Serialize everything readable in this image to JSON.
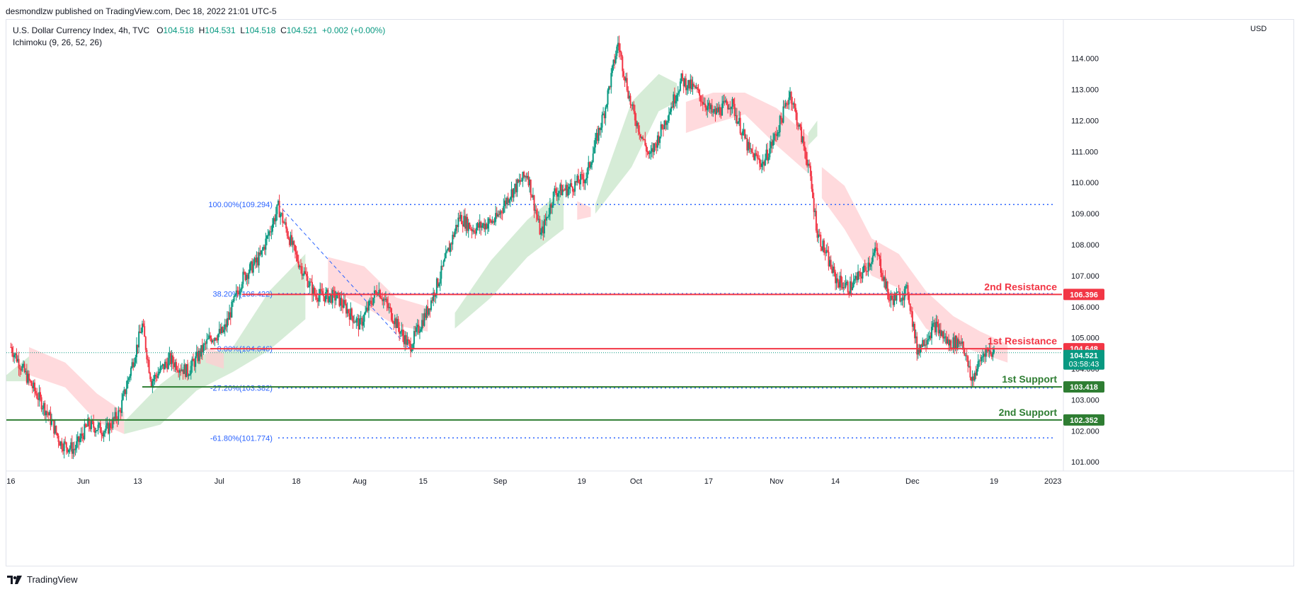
{
  "publisher": "desmondlzw published on TradingView.com, Dec 18, 2022 21:01 UTC-5",
  "legend": {
    "symbol": "U.S. Dollar Currency Index, 4h, TVC",
    "o_label": "O",
    "o": "104.518",
    "h_label": "H",
    "h": "104.531",
    "l_label": "L",
    "l": "104.518",
    "c_label": "C",
    "c": "104.521",
    "change": "+0.002 (+0.00%)",
    "indicator": "Ichimoku (9, 26, 52, 26)"
  },
  "currency": "USD",
  "footer": {
    "brand": "TradingView"
  },
  "colors": {
    "up": "#089981",
    "down": "#f23645",
    "resistance": "#f23645",
    "support": "#2e7d32",
    "fib": "#2962ff",
    "cloud_bull": "#c8e6c9",
    "cloud_bear": "#ffcdd2"
  },
  "chart_data": {
    "type": "candlestick",
    "title": "U.S. Dollar Currency Index, 4h, TVC",
    "ylim": [
      100.8,
      115.2
    ],
    "y_ticks": [
      "101.000",
      "102.000",
      "103.000",
      "104.000",
      "105.000",
      "106.000",
      "107.000",
      "108.000",
      "109.000",
      "110.000",
      "111.000",
      "112.000",
      "113.000",
      "114.000"
    ],
    "x_ticks": [
      {
        "label": "16",
        "x": "2022-05-16"
      },
      {
        "label": "Jun",
        "x": "2022-06-01"
      },
      {
        "label": "13",
        "x": "2022-06-13"
      },
      {
        "label": "Jul",
        "x": "2022-07-01"
      },
      {
        "label": "18",
        "x": "2022-07-18"
      },
      {
        "label": "Aug",
        "x": "2022-08-01"
      },
      {
        "label": "15",
        "x": "2022-08-15"
      },
      {
        "label": "Sep",
        "x": "2022-09-01"
      },
      {
        "label": "19",
        "x": "2022-09-19"
      },
      {
        "label": "Oct",
        "x": "2022-10-01"
      },
      {
        "label": "17",
        "x": "2022-10-17"
      },
      {
        "label": "Nov",
        "x": "2022-11-01"
      },
      {
        "label": "14",
        "x": "2022-11-14"
      },
      {
        "label": "Dec",
        "x": "2022-12-01"
      },
      {
        "label": "19",
        "x": "2022-12-19"
      },
      {
        "label": "2023",
        "x": "2023-01-01"
      }
    ],
    "x_range": [
      "2022-05-15",
      "2023-01-03"
    ],
    "price_path": [
      [
        "2022-05-16",
        104.7
      ],
      [
        "2022-05-20",
        103.6
      ],
      [
        "2022-05-24",
        102.6
      ],
      [
        "2022-05-27",
        101.6
      ],
      [
        "2022-05-30",
        101.4
      ],
      [
        "2022-06-02",
        102.2
      ],
      [
        "2022-06-06",
        102.0
      ],
      [
        "2022-06-09",
        102.6
      ],
      [
        "2022-06-14",
        105.4
      ],
      [
        "2022-06-16",
        103.6
      ],
      [
        "2022-06-20",
        104.3
      ],
      [
        "2022-06-24",
        103.9
      ],
      [
        "2022-06-29",
        105.0
      ],
      [
        "2022-07-02",
        105.2
      ],
      [
        "2022-07-06",
        106.9
      ],
      [
        "2022-07-10",
        107.6
      ],
      [
        "2022-07-14",
        109.2
      ],
      [
        "2022-07-18",
        107.6
      ],
      [
        "2022-07-22",
        106.4
      ],
      [
        "2022-07-27",
        106.3
      ],
      [
        "2022-08-01",
        105.4
      ],
      [
        "2022-08-05",
        106.6
      ],
      [
        "2022-08-10",
        105.2
      ],
      [
        "2022-08-12",
        104.7
      ],
      [
        "2022-08-16",
        105.9
      ],
      [
        "2022-08-19",
        107.1
      ],
      [
        "2022-08-23",
        108.9
      ],
      [
        "2022-08-26",
        108.5
      ],
      [
        "2022-08-31",
        108.8
      ],
      [
        "2022-09-03",
        109.6
      ],
      [
        "2022-09-07",
        110.3
      ],
      [
        "2022-09-10",
        108.3
      ],
      [
        "2022-09-13",
        109.7
      ],
      [
        "2022-09-16",
        109.8
      ],
      [
        "2022-09-20",
        110.2
      ],
      [
        "2022-09-24",
        112.3
      ],
      [
        "2022-09-27",
        114.5
      ],
      [
        "2022-09-30",
        112.4
      ],
      [
        "2022-10-04",
        110.8
      ],
      [
        "2022-10-08",
        112.2
      ],
      [
        "2022-10-11",
        113.3
      ],
      [
        "2022-10-14",
        113.0
      ],
      [
        "2022-10-18",
        112.2
      ],
      [
        "2022-10-22",
        112.6
      ],
      [
        "2022-10-26",
        111.0
      ],
      [
        "2022-10-29",
        110.6
      ],
      [
        "2022-11-01",
        111.6
      ],
      [
        "2022-11-04",
        112.9
      ],
      [
        "2022-11-08",
        110.6
      ],
      [
        "2022-11-10",
        108.4
      ],
      [
        "2022-11-14",
        106.9
      ],
      [
        "2022-11-17",
        106.6
      ],
      [
        "2022-11-20",
        107.1
      ],
      [
        "2022-11-23",
        107.8
      ],
      [
        "2022-11-26",
        106.2
      ],
      [
        "2022-11-30",
        106.5
      ],
      [
        "2022-12-02",
        104.6
      ],
      [
        "2022-12-06",
        105.4
      ],
      [
        "2022-12-09",
        104.8
      ],
      [
        "2022-12-12",
        104.9
      ],
      [
        "2022-12-14",
        103.6
      ],
      [
        "2022-12-17",
        104.6
      ],
      [
        "2022-12-19",
        104.52
      ]
    ],
    "cloud_segments": [
      {
        "type": "bear",
        "points": [
          [
            "2022-05-20",
            104.7,
            103.8
          ],
          [
            "2022-05-28",
            104.2,
            103.4
          ],
          [
            "2022-06-04",
            103.2,
            102.3
          ],
          [
            "2022-06-10",
            102.6,
            101.9
          ]
        ]
      },
      {
        "type": "bull",
        "points": [
          [
            "2022-05-15",
            103.8,
            103.6
          ],
          [
            "2022-05-20",
            104.4,
            103.6
          ]
        ]
      },
      {
        "type": "bull",
        "points": [
          [
            "2022-06-10",
            102.3,
            101.9
          ],
          [
            "2022-06-18",
            103.5,
            102.2
          ],
          [
            "2022-06-26",
            104.4,
            103.3
          ],
          [
            "2022-07-04",
            104.7,
            103.9
          ],
          [
            "2022-07-12",
            106.5,
            104.6
          ],
          [
            "2022-07-20",
            107.7,
            105.6
          ]
        ]
      },
      {
        "type": "bear",
        "points": [
          [
            "2022-06-28",
            104.7,
            104.2
          ],
          [
            "2022-07-02",
            104.5,
            104.0
          ]
        ]
      },
      {
        "type": "bear",
        "points": [
          [
            "2022-07-25",
            107.6,
            106.6
          ],
          [
            "2022-08-02",
            107.3,
            106.0
          ],
          [
            "2022-08-09",
            106.3,
            105.4
          ],
          [
            "2022-08-16",
            106.0,
            105.2
          ]
        ]
      },
      {
        "type": "bull",
        "points": [
          [
            "2022-08-22",
            105.8,
            105.3
          ],
          [
            "2022-08-30",
            107.5,
            106.3
          ],
          [
            "2022-09-07",
            108.8,
            107.6
          ],
          [
            "2022-09-15",
            109.8,
            108.5
          ]
        ]
      },
      {
        "type": "bear",
        "points": [
          [
            "2022-09-18",
            109.4,
            108.8
          ],
          [
            "2022-09-21",
            109.2,
            108.9
          ]
        ]
      },
      {
        "type": "bull",
        "points": [
          [
            "2022-09-22",
            109.3,
            109.0
          ],
          [
            "2022-09-30",
            112.6,
            110.5
          ],
          [
            "2022-10-06",
            113.5,
            112.3
          ],
          [
            "2022-10-10",
            113.2,
            112.6
          ]
        ]
      },
      {
        "type": "bear",
        "points": [
          [
            "2022-10-12",
            112.6,
            111.6
          ],
          [
            "2022-10-18",
            112.9,
            111.9
          ],
          [
            "2022-10-25",
            112.9,
            112.2
          ],
          [
            "2022-11-01",
            112.4,
            111.2
          ],
          [
            "2022-11-08",
            111.5,
            110.3
          ]
        ]
      },
      {
        "type": "bull",
        "points": [
          [
            "2022-11-08",
            111.6,
            111.2
          ],
          [
            "2022-11-10",
            112.0,
            111.5
          ]
        ]
      },
      {
        "type": "bear",
        "points": [
          [
            "2022-11-11",
            110.5,
            109.5
          ],
          [
            "2022-11-16",
            109.9,
            108.5
          ],
          [
            "2022-11-22",
            108.2,
            107.0
          ],
          [
            "2022-11-28",
            107.7,
            106.6
          ],
          [
            "2022-12-04",
            106.5,
            105.3
          ],
          [
            "2022-12-10",
            105.7,
            104.8
          ],
          [
            "2022-12-16",
            105.2,
            104.5
          ],
          [
            "2022-12-22",
            104.8,
            104.2
          ]
        ]
      }
    ],
    "fibonacci": {
      "levels": [
        {
          "label": "100.00%(109.294)",
          "value": 109.294
        },
        {
          "label": "38.20%(106.422)",
          "value": 106.422
        },
        {
          "label": "0.00%(104.646)",
          "value": 104.646
        },
        {
          "label": "-27.20%(103.382)",
          "value": 103.382
        },
        {
          "label": "-61.80%(101.774)",
          "value": 101.774
        }
      ],
      "start": "2022-07-14",
      "end": "2023-01-01",
      "diag_from": [
        "2022-07-14",
        109.294
      ],
      "diag_to": [
        "2022-08-12",
        104.646
      ]
    },
    "levels": [
      {
        "label": "2nd Resistance",
        "value": 106.396,
        "tag": "106.396",
        "kind": "resistance",
        "from": "2022-07-06"
      },
      {
        "label": "1st Resistance",
        "value": 104.648,
        "tag": "104.648",
        "kind": "resistance",
        "from": "2022-06-29"
      },
      {
        "label": "1st Support",
        "value": 103.418,
        "tag": "103.418",
        "kind": "support",
        "from": "2022-06-14"
      },
      {
        "label": "2nd Support",
        "value": 102.352,
        "tag": "102.352",
        "kind": "support",
        "from": "2022-05-15"
      }
    ],
    "last_price": {
      "value": 104.521,
      "tag": "104.521",
      "countdown": "03:58:43"
    }
  }
}
